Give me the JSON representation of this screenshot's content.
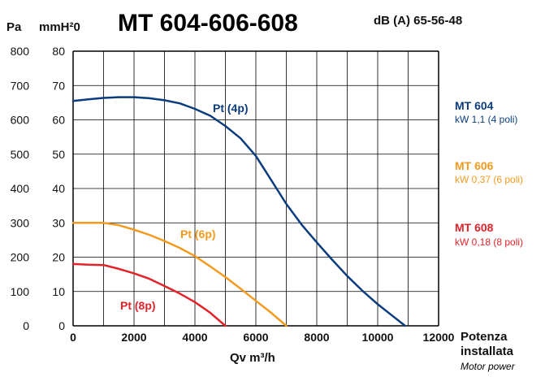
{
  "header": {
    "title": "MT 604-606-608",
    "noise_label": "dB (A) 65-56-48",
    "unit_pa": "Pa",
    "unit_mmh2o": "mmH²0"
  },
  "footer": {
    "power_label_line1": "Potenza",
    "power_label_line2": "installata",
    "power_label_line3": "Motor power"
  },
  "colors": {
    "mt604": "#0b3d7e",
    "mt606": "#f39a1e",
    "mt608": "#e2232a",
    "grid": "#000000"
  },
  "chart_data": {
    "type": "line",
    "title": "MT 604-606-608",
    "xlabel": "Qv m³/h",
    "ylabel": "mmH²0",
    "ylabel_secondary": "Pa",
    "xlim": [
      0,
      12000
    ],
    "ylim": [
      0,
      80
    ],
    "ylim_secondary": [
      0,
      800
    ],
    "x_ticks": [
      "0",
      "2000",
      "4000",
      "6000",
      "8000",
      "10000",
      "12000"
    ],
    "y_ticks": [
      "0",
      "10",
      "20",
      "30",
      "40",
      "50",
      "60",
      "70",
      "80"
    ],
    "y_ticks_secondary": [
      "0",
      "100",
      "200",
      "300",
      "400",
      "500",
      "600",
      "700",
      "800"
    ],
    "grid": true,
    "series": [
      {
        "name": "MT 604",
        "curve_label": "Pt (4p)",
        "power": "kW 1,1 (4 poli)",
        "color": "#0b3d7e",
        "x": [
          0,
          500,
          1000,
          1500,
          2000,
          2500,
          3000,
          3500,
          4000,
          4500,
          5000,
          5500,
          6000,
          6500,
          7000,
          7500,
          8000,
          8500,
          9000,
          9500,
          10000,
          10500,
          10900
        ],
        "y": [
          65.5,
          66.0,
          66.4,
          66.6,
          66.6,
          66.3,
          65.7,
          64.8,
          63.2,
          61.2,
          58.2,
          54.6,
          49.5,
          42.5,
          35.5,
          29.5,
          24.3,
          19.3,
          14.5,
          10.2,
          6.3,
          2.8,
          0
        ]
      },
      {
        "name": "MT 606",
        "curve_label": "Pt (6p)",
        "power": "kW 0,37 (6 poli)",
        "color": "#f39a1e",
        "x": [
          0,
          500,
          1000,
          1500,
          2000,
          2500,
          3000,
          3500,
          4000,
          4500,
          5000,
          5500,
          6000,
          6500,
          7000
        ],
        "y": [
          30.0,
          30.0,
          30.0,
          29.3,
          28.0,
          26.5,
          24.7,
          22.7,
          20.3,
          17.3,
          14.2,
          10.8,
          7.3,
          3.8,
          0
        ]
      },
      {
        "name": "MT 608",
        "curve_label": "Pt (8p)",
        "power": "kW 0,18 (8 poli)",
        "color": "#e2232a",
        "x": [
          0,
          500,
          1000,
          1500,
          2000,
          2500,
          3000,
          3500,
          4000,
          4500,
          5000
        ],
        "y": [
          18.0,
          17.8,
          17.7,
          16.6,
          15.3,
          13.7,
          11.6,
          9.4,
          6.9,
          3.8,
          0
        ]
      }
    ]
  }
}
